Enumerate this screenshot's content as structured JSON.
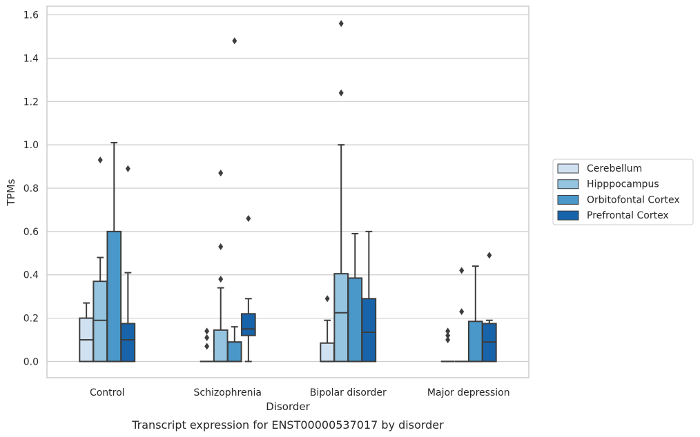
{
  "chart_data": {
    "type": "box",
    "caption": "Transcript expression for ENST00000537017 by disorder",
    "xlabel": "Disorder",
    "ylabel": "TPMs",
    "ylim": [
      -0.075,
      1.64
    ],
    "yticks": [
      0.0,
      0.2,
      0.4,
      0.6,
      0.8,
      1.0,
      1.2,
      1.4,
      1.6
    ],
    "ytick_labels": [
      "0.0",
      "0.2",
      "0.4",
      "0.6",
      "0.8",
      "1.0",
      "1.2",
      "1.4",
      "1.6"
    ],
    "grid": "horizontal",
    "legend_position": "right",
    "categories": [
      "Control",
      "Schizophrenia",
      "Bipolar disorder",
      "Major depression"
    ],
    "series": [
      {
        "name": "Cerebellum",
        "color": "#d0e1f2",
        "boxes": [
          {
            "whislo": 0.0,
            "q1": 0.0,
            "med": 0.1,
            "q3": 0.2,
            "whishi": 0.27,
            "fliers": []
          },
          {
            "whislo": 0.0,
            "q1": 0.0,
            "med": 0.0,
            "q3": 0.0,
            "whishi": 0.0,
            "fliers": [
              0.07,
              0.11,
              0.14
            ]
          },
          {
            "whislo": 0.0,
            "q1": 0.0,
            "med": 0.0,
            "q3": 0.085,
            "whishi": 0.19,
            "fliers": [
              0.29
            ]
          },
          {
            "whislo": 0.0,
            "q1": 0.0,
            "med": 0.0,
            "q3": 0.0,
            "whishi": 0.0,
            "fliers": [
              0.1,
              0.12,
              0.14
            ]
          }
        ]
      },
      {
        "name": "Hipppocampus",
        "color": "#94c4df",
        "boxes": [
          {
            "whislo": 0.0,
            "q1": 0.0,
            "med": 0.19,
            "q3": 0.37,
            "whishi": 0.48,
            "fliers": [
              0.93
            ]
          },
          {
            "whislo": 0.0,
            "q1": 0.0,
            "med": 0.0,
            "q3": 0.145,
            "whishi": 0.34,
            "fliers": [
              0.38,
              0.53,
              0.87
            ]
          },
          {
            "whislo": 0.0,
            "q1": 0.0,
            "med": 0.225,
            "q3": 0.405,
            "whishi": 1.0,
            "fliers": [
              1.24,
              1.56
            ]
          },
          {
            "whislo": 0.0,
            "q1": 0.0,
            "med": 0.0,
            "q3": 0.0,
            "whishi": 0.0,
            "fliers": [
              0.23,
              0.42
            ]
          }
        ]
      },
      {
        "name": "Orbitofontal Cortex",
        "color": "#4a98c9",
        "boxes": [
          {
            "whislo": 0.0,
            "q1": 0.0,
            "med": 0.0,
            "q3": 0.6,
            "whishi": 1.01,
            "fliers": []
          },
          {
            "whislo": 0.0,
            "q1": 0.0,
            "med": 0.0,
            "q3": 0.09,
            "whishi": 0.16,
            "fliers": [
              1.48
            ]
          },
          {
            "whislo": 0.0,
            "q1": 0.0,
            "med": 0.0,
            "q3": 0.385,
            "whishi": 0.59,
            "fliers": []
          },
          {
            "whislo": 0.0,
            "q1": 0.0,
            "med": 0.0,
            "q3": 0.185,
            "whishi": 0.44,
            "fliers": []
          }
        ]
      },
      {
        "name": "Prefrontal Cortex",
        "color": "#1764ab",
        "boxes": [
          {
            "whislo": 0.0,
            "q1": 0.0,
            "med": 0.1,
            "q3": 0.175,
            "whishi": 0.41,
            "fliers": [
              0.89
            ]
          },
          {
            "whislo": 0.0,
            "q1": 0.12,
            "med": 0.15,
            "q3": 0.22,
            "whishi": 0.29,
            "fliers": [
              0.66
            ]
          },
          {
            "whislo": 0.0,
            "q1": 0.0,
            "med": 0.135,
            "q3": 0.29,
            "whishi": 0.6,
            "fliers": []
          },
          {
            "whislo": 0.0,
            "q1": 0.0,
            "med": 0.09,
            "q3": 0.175,
            "whishi": 0.19,
            "fliers": [
              0.49
            ]
          }
        ]
      }
    ]
  }
}
